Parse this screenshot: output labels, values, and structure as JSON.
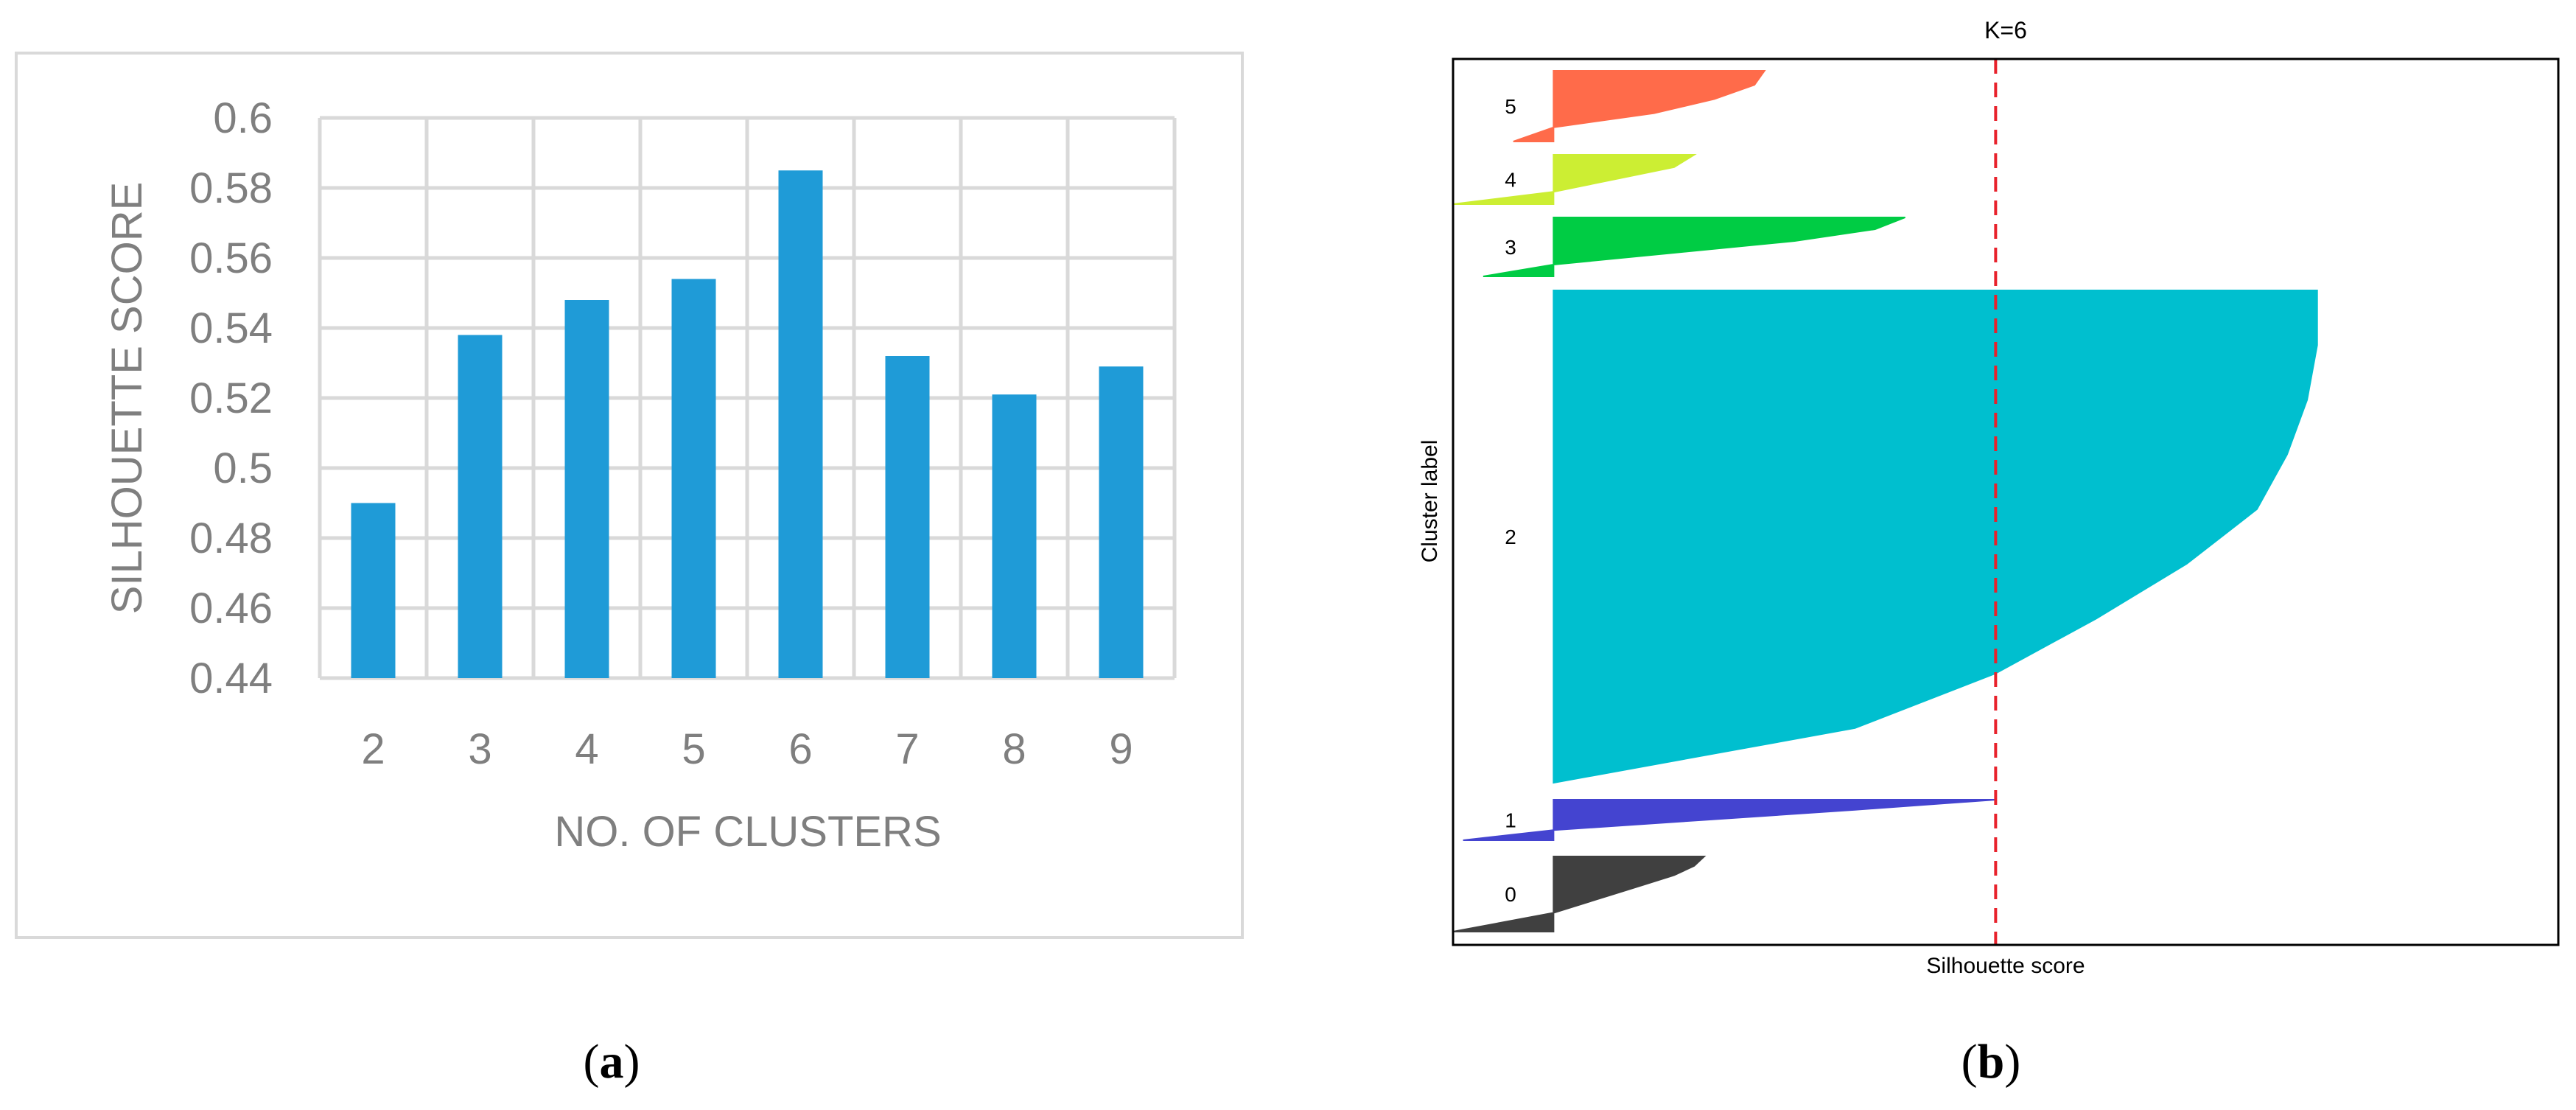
{
  "captions": {
    "left_open": "(",
    "left_letter": "a",
    "left_close": ")",
    "right_open": "(",
    "right_letter": "b",
    "right_close": ")"
  },
  "colors": {
    "bar": "#1f9bd7",
    "grid": "#d9d9d9",
    "tick_text": "#7f7f7f",
    "ref_line": "#e8212b",
    "cluster_0": "#404040",
    "cluster_1": "#4444d0",
    "cluster_2": "#00bfcf",
    "cluster_3": "#00cc44",
    "cluster_4": "#ccee33",
    "cluster_5": "#ff6b4a"
  },
  "chart_data": [
    {
      "type": "bar",
      "title": "",
      "xlabel": "NO. OF CLUSTERS",
      "ylabel": "SILHOUETTE SCORE",
      "categories": [
        "2",
        "3",
        "4",
        "5",
        "6",
        "7",
        "8",
        "9"
      ],
      "values": [
        0.49,
        0.538,
        0.548,
        0.554,
        0.585,
        0.532,
        0.521,
        0.529
      ],
      "ylim": [
        0.44,
        0.6
      ],
      "yticks": [
        "0.44",
        "0.46",
        "0.48",
        "0.5",
        "0.52",
        "0.54",
        "0.56",
        "0.58",
        "0.6"
      ],
      "grid": true,
      "legend": "none"
    },
    {
      "type": "area",
      "title": "K=6",
      "xlabel": "Silhouette score",
      "ylabel": "Cluster label",
      "clusters": [
        {
          "label": "0",
          "sorted_scores": [
            -0.1,
            -0.05,
            0.0,
            0.03,
            0.06,
            0.09,
            0.12,
            0.14,
            0.15
          ],
          "color_key": "cluster_0"
        },
        {
          "label": "1",
          "sorted_scores": [
            -0.09,
            0.0,
            0.15,
            0.3,
            0.44
          ],
          "color_key": "cluster_1"
        },
        {
          "label": "2",
          "sorted_scores": [
            0.0,
            0.3,
            0.44,
            0.54,
            0.63,
            0.7,
            0.73,
            0.75,
            0.76,
            0.76
          ],
          "color_key": "cluster_2"
        },
        {
          "label": "3",
          "sorted_scores": [
            -0.07,
            0.0,
            0.12,
            0.24,
            0.32,
            0.35
          ],
          "color_key": "cluster_3"
        },
        {
          "label": "4",
          "sorted_scores": [
            -0.1,
            0.0,
            0.06,
            0.12,
            0.14
          ],
          "color_key": "cluster_4"
        },
        {
          "label": "5",
          "sorted_scores": [
            -0.04,
            0.0,
            0.1,
            0.16,
            0.2,
            0.21
          ],
          "color_key": "cluster_5"
        }
      ],
      "reference_line": 0.44,
      "xlim": [
        -0.1,
        1.0
      ]
    }
  ]
}
